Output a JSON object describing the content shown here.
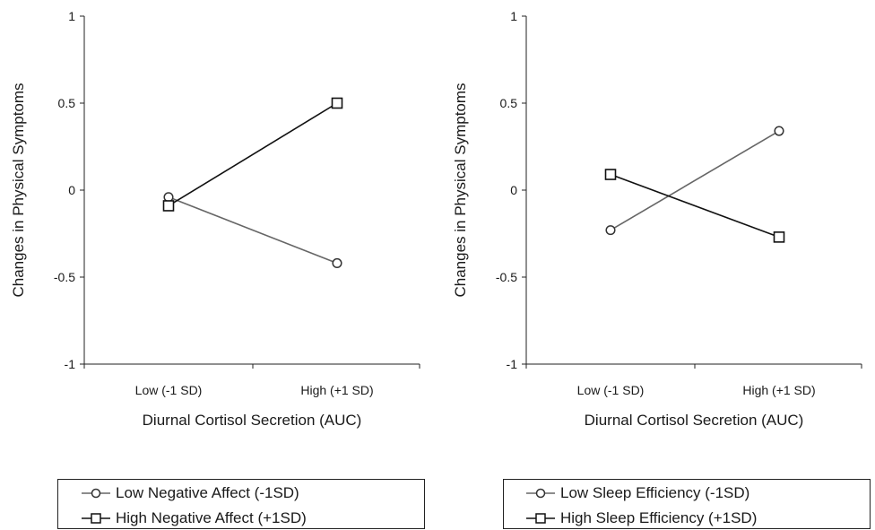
{
  "chart_data": [
    {
      "type": "line",
      "categories": [
        "Low (-1 SD)",
        "High (+1 SD)"
      ],
      "ylabel": "Changes in Physical Symptoms",
      "xlabel": "Diurnal Cortisol Secretion (AUC)",
      "ylim": [
        -1,
        1
      ],
      "yticks": [
        -1,
        -0.5,
        0,
        0.5,
        1
      ],
      "ytick_labels": [
        "-1",
        "-0.5",
        "0",
        "0.5",
        "1"
      ],
      "grid": false,
      "legend_position": "bottom",
      "series": [
        {
          "name": "Low Negative Affect (-1SD)",
          "marker": "circle",
          "color": "#666666",
          "values": [
            -0.04,
            -0.42
          ]
        },
        {
          "name": "High Negative Affect (+1SD)",
          "marker": "square",
          "color": "#111111",
          "values": [
            -0.09,
            0.5
          ]
        }
      ]
    },
    {
      "type": "line",
      "categories": [
        "Low (-1 SD)",
        "High (+1 SD)"
      ],
      "ylabel": "Changes in Physical Symptoms",
      "xlabel": "Diurnal Cortisol Secretion (AUC)",
      "ylim": [
        -1,
        1
      ],
      "yticks": [
        -1,
        -0.5,
        0,
        0.5,
        1
      ],
      "ytick_labels": [
        "-1",
        "-0.5",
        "0",
        "0.5",
        "1"
      ],
      "grid": false,
      "legend_position": "bottom",
      "series": [
        {
          "name": "Low Sleep Efficiency (-1SD)",
          "marker": "circle",
          "color": "#666666",
          "values": [
            -0.23,
            0.34
          ]
        },
        {
          "name": "High Sleep Efficiency (+1SD)",
          "marker": "square",
          "color": "#111111",
          "values": [
            0.09,
            -0.27
          ]
        }
      ]
    }
  ]
}
